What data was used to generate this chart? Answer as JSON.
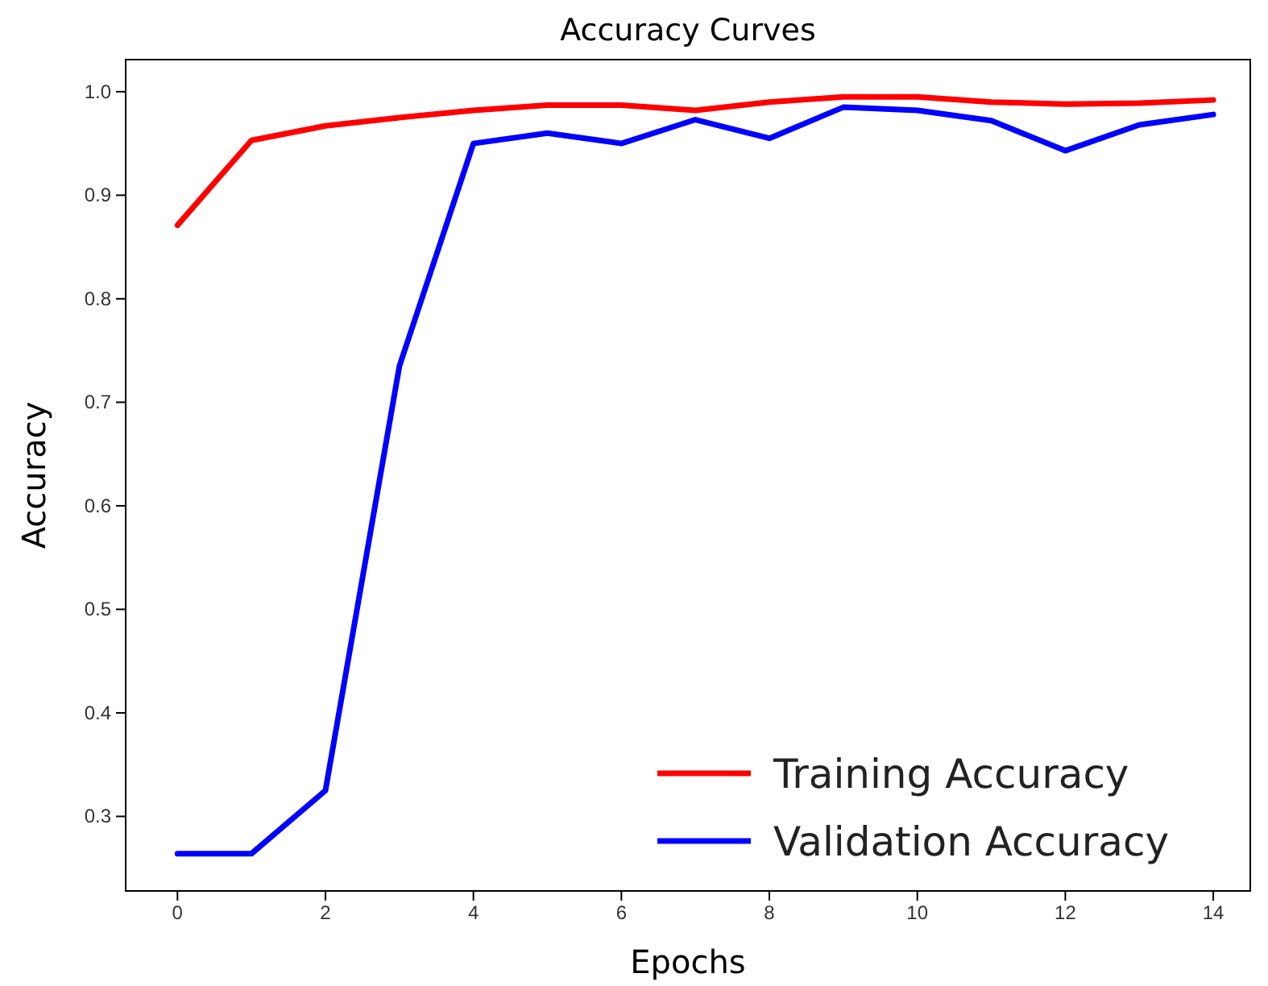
{
  "chart_data": {
    "type": "line",
    "title": "Accuracy Curves",
    "xlabel": "Epochs",
    "ylabel": "Accuracy",
    "x": [
      0,
      1,
      2,
      3,
      4,
      5,
      6,
      7,
      8,
      9,
      10,
      11,
      12,
      13,
      14
    ],
    "series": [
      {
        "name": "Training Accuracy",
        "color": "#ff0000",
        "values": [
          0.871,
          0.953,
          0.967,
          0.975,
          0.982,
          0.987,
          0.987,
          0.982,
          0.99,
          0.995,
          0.995,
          0.99,
          0.988,
          0.989,
          0.992
        ]
      },
      {
        "name": "Validation Accuracy",
        "color": "#0000ff",
        "values": [
          0.264,
          0.264,
          0.325,
          0.735,
          0.95,
          0.96,
          0.95,
          0.973,
          0.955,
          0.985,
          0.982,
          0.972,
          0.943,
          0.968,
          0.978
        ]
      }
    ],
    "xlim": [
      -0.7,
      14.5
    ],
    "ylim": [
      0.228,
      1.031
    ],
    "xticks": [
      0,
      2,
      4,
      6,
      8,
      10,
      12,
      14
    ],
    "yticks": [
      0.3,
      0.4,
      0.5,
      0.6,
      0.7,
      0.8,
      0.9,
      {
        "value": 1,
        "label": "1.0"
      }
    ],
    "legend": "bottom right",
    "grid": false,
    "line_style": "solid",
    "marker": "none"
  }
}
